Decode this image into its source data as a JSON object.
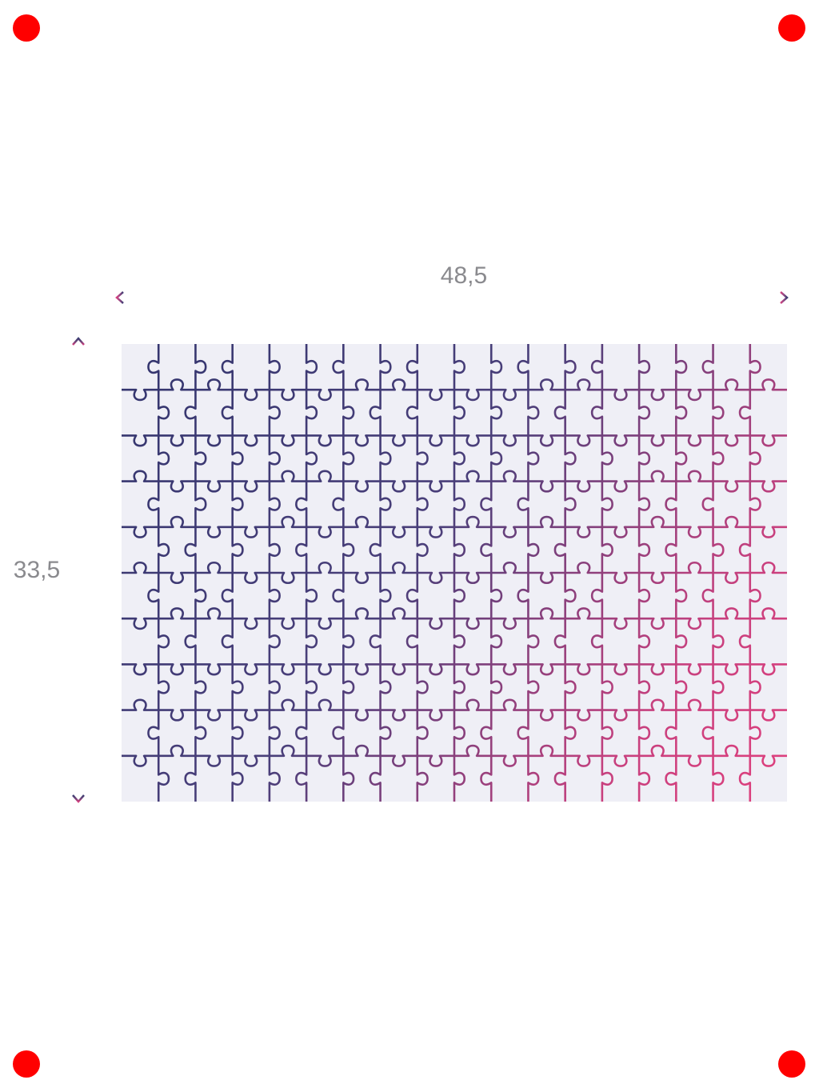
{
  "dimensions": {
    "width": "48,5",
    "height": "33,5"
  }
}
